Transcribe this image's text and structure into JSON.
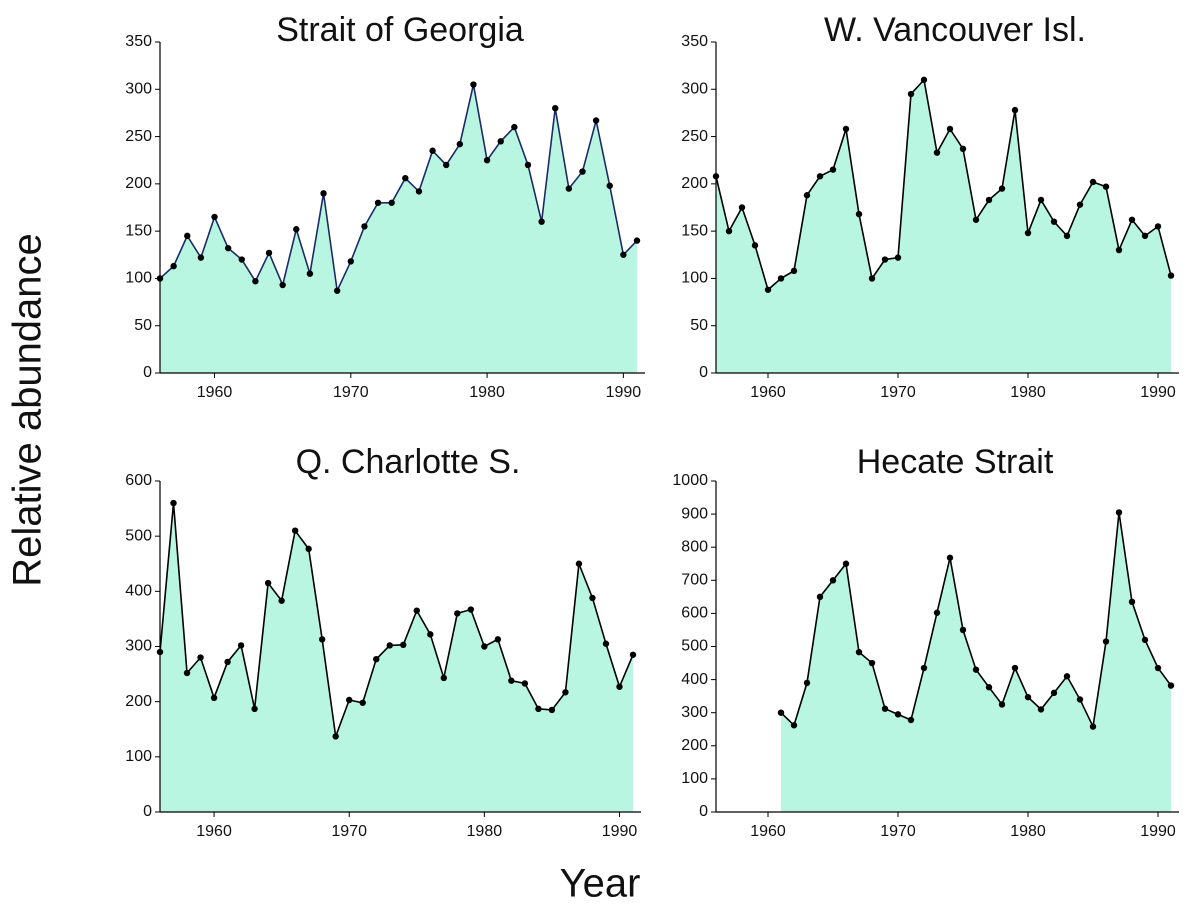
{
  "xlabel": "Year",
  "ylabel": "Relative abundance",
  "chart_data": [
    {
      "type": "area",
      "title": "Strait of Georgia",
      "x": [
        1956,
        1957,
        1958,
        1959,
        1960,
        1961,
        1962,
        1963,
        1964,
        1965,
        1966,
        1967,
        1968,
        1969,
        1970,
        1971,
        1972,
        1973,
        1974,
        1975,
        1976,
        1977,
        1978,
        1979,
        1980,
        1981,
        1982,
        1983,
        1984,
        1985,
        1986,
        1987,
        1988,
        1989,
        1990,
        1991
      ],
      "series": [
        {
          "color": "#1c2a66",
          "fill": "#b9f6e2",
          "values": [
            100,
            113,
            145,
            122,
            165,
            132,
            120,
            97,
            127,
            93,
            152,
            105,
            190,
            87,
            118,
            155,
            180,
            180,
            206,
            192,
            235,
            220,
            242,
            305,
            225,
            245,
            260,
            220,
            160,
            280,
            195,
            213,
            267,
            198,
            125,
            140
          ]
        }
      ],
      "xlim": [
        1956,
        1991
      ],
      "xticks": [
        1960,
        1970,
        1980,
        1990
      ],
      "ylim": [
        0,
        350
      ],
      "yticks": [
        0,
        50,
        100,
        150,
        200,
        250,
        300,
        350
      ]
    },
    {
      "type": "area",
      "title": "W. Vancouver Isl.",
      "x": [
        1956,
        1957,
        1958,
        1959,
        1960,
        1961,
        1962,
        1963,
        1964,
        1965,
        1966,
        1967,
        1968,
        1969,
        1970,
        1971,
        1972,
        1973,
        1974,
        1975,
        1976,
        1977,
        1978,
        1979,
        1980,
        1981,
        1982,
        1983,
        1984,
        1985,
        1986,
        1987,
        1988,
        1989,
        1990,
        1991
      ],
      "series": [
        {
          "color": "#000000",
          "fill": "#b9f6e2",
          "values": [
            208,
            150,
            175,
            135,
            88,
            100,
            108,
            188,
            208,
            215,
            258,
            168,
            100,
            120,
            122,
            295,
            310,
            233,
            258,
            237,
            162,
            183,
            195,
            278,
            148,
            183,
            160,
            145,
            178,
            202,
            197,
            130,
            162,
            145,
            155,
            103
          ]
        }
      ],
      "xlim": [
        1956,
        1991
      ],
      "xticks": [
        1960,
        1970,
        1980,
        1990
      ],
      "ylim": [
        0,
        350
      ],
      "yticks": [
        0,
        50,
        100,
        150,
        200,
        250,
        300,
        350
      ]
    },
    {
      "type": "area",
      "title": "Q. Charlotte S.",
      "x": [
        1956,
        1957,
        1958,
        1959,
        1960,
        1961,
        1962,
        1963,
        1964,
        1965,
        1966,
        1967,
        1968,
        1969,
        1970,
        1971,
        1972,
        1973,
        1974,
        1975,
        1976,
        1977,
        1978,
        1979,
        1980,
        1981,
        1982,
        1983,
        1984,
        1985,
        1986,
        1987,
        1988,
        1989,
        1990,
        1991
      ],
      "series": [
        {
          "color": "#000000",
          "fill": "#b9f6e2",
          "values": [
            290,
            560,
            252,
            280,
            207,
            272,
            302,
            187,
            415,
            383,
            510,
            477,
            313,
            137,
            203,
            198,
            277,
            302,
            303,
            365,
            322,
            243,
            360,
            367,
            300,
            313,
            238,
            233,
            187,
            185,
            217,
            450,
            388,
            305,
            227,
            285
          ]
        }
      ],
      "xlim": [
        1956,
        1991
      ],
      "xticks": [
        1960,
        1970,
        1980,
        1990
      ],
      "ylim": [
        0,
        600
      ],
      "yticks": [
        0,
        100,
        200,
        300,
        400,
        500,
        600
      ]
    },
    {
      "type": "area",
      "title": "Hecate Strait",
      "x": [
        1961,
        1962,
        1963,
        1964,
        1965,
        1966,
        1967,
        1968,
        1969,
        1970,
        1971,
        1972,
        1973,
        1974,
        1975,
        1976,
        1977,
        1978,
        1979,
        1980,
        1981,
        1982,
        1983,
        1984,
        1985,
        1986,
        1987,
        1988,
        1989,
        1990,
        1991
      ],
      "series": [
        {
          "color": "#000000",
          "fill": "#b9f6e2",
          "values": [
            300,
            262,
            390,
            650,
            700,
            750,
            483,
            450,
            312,
            295,
            278,
            435,
            602,
            768,
            550,
            430,
            377,
            325,
            435,
            347,
            310,
            360,
            410,
            340,
            258,
            515,
            905,
            635,
            520,
            435,
            382
          ]
        }
      ],
      "xlim": [
        1956,
        1991
      ],
      "xticks": [
        1960,
        1970,
        1980,
        1990
      ],
      "ylim": [
        0,
        1000
      ],
      "yticks": [
        0,
        100,
        200,
        300,
        400,
        500,
        600,
        700,
        800,
        900,
        1000
      ]
    }
  ]
}
